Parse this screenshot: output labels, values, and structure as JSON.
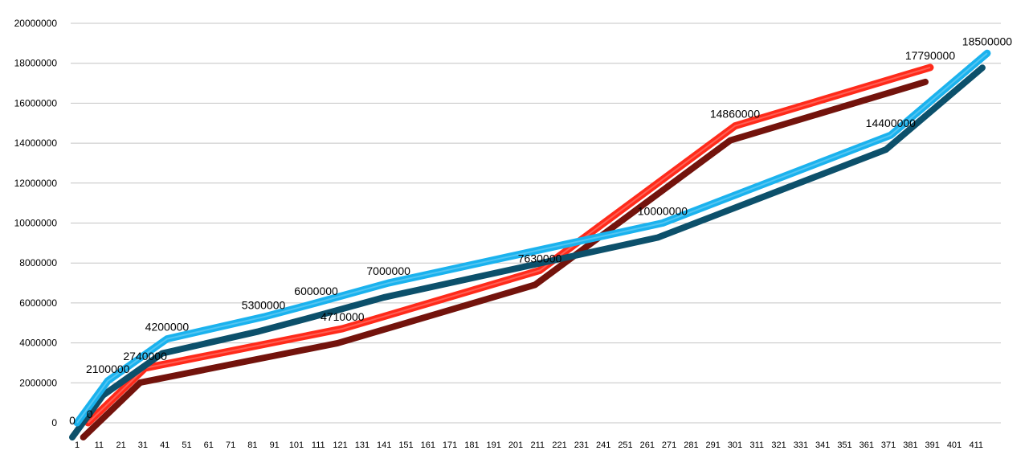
{
  "chart_data": {
    "type": "line",
    "title": "",
    "xlabel": "",
    "ylabel": "",
    "ylim": [
      0,
      20000000
    ],
    "yticks": [
      0,
      2000000,
      4000000,
      6000000,
      8000000,
      10000000,
      12000000,
      14000000,
      16000000,
      18000000,
      20000000
    ],
    "ytick_labels": [
      "0",
      "2000000",
      "4000000",
      "6000000",
      "8000000",
      "10000000",
      "12000000",
      "14000000",
      "16000000",
      "18000000",
      "20000000"
    ],
    "xticks": [
      1,
      11,
      21,
      31,
      41,
      51,
      61,
      71,
      81,
      91,
      101,
      111,
      121,
      131,
      141,
      151,
      161,
      171,
      181,
      191,
      201,
      211,
      221,
      231,
      241,
      251,
      261,
      271,
      281,
      291,
      301,
      311,
      321,
      331,
      341,
      351,
      361,
      371,
      381,
      391,
      401,
      411
    ],
    "xtick_labels": [
      "1",
      "11",
      "21",
      "31",
      "41",
      "51",
      "61",
      "71",
      "81",
      "91",
      "101",
      "111",
      "121",
      "131",
      "141",
      "151",
      "161",
      "171",
      "181",
      "191",
      "201",
      "211",
      "221",
      "231",
      "241",
      "251",
      "261",
      "271",
      "281",
      "291",
      "301",
      "311",
      "321",
      "331",
      "341",
      "351",
      "361",
      "371",
      "381",
      "391",
      "401",
      "411"
    ],
    "xlim": [
      1,
      416
    ],
    "grid": true,
    "style": "3d-ribbon",
    "series": [
      {
        "color": "#ff2a1a",
        "points": [
          {
            "x": 6,
            "y": 0,
            "label": "0"
          },
          {
            "x": 32,
            "y": 2740000,
            "label": "2740000"
          },
          {
            "x": 122,
            "y": 4710000,
            "label": "4710000"
          },
          {
            "x": 212,
            "y": 7630000,
            "label": "7630000"
          },
          {
            "x": 301,
            "y": 14860000,
            "label": "14860000"
          },
          {
            "x": 390,
            "y": 17790000,
            "label": "17790000"
          }
        ]
      },
      {
        "color": "#1ab2ee",
        "points": [
          {
            "x": 1,
            "y": 0,
            "label": "0"
          },
          {
            "x": 15,
            "y": 2100000,
            "label": "2100000"
          },
          {
            "x": 42,
            "y": 4200000,
            "label": "4200000"
          },
          {
            "x": 86,
            "y": 5300000,
            "label": "5300000"
          },
          {
            "x": 110,
            "y": 6000000,
            "label": "6000000"
          },
          {
            "x": 143,
            "y": 7000000,
            "label": "7000000"
          },
          {
            "x": 268,
            "y": 10000000,
            "label": "10000000"
          },
          {
            "x": 372,
            "y": 14400000,
            "label": "14400000"
          },
          {
            "x": 416,
            "y": 18500000,
            "label": "18500000"
          }
        ]
      }
    ]
  }
}
